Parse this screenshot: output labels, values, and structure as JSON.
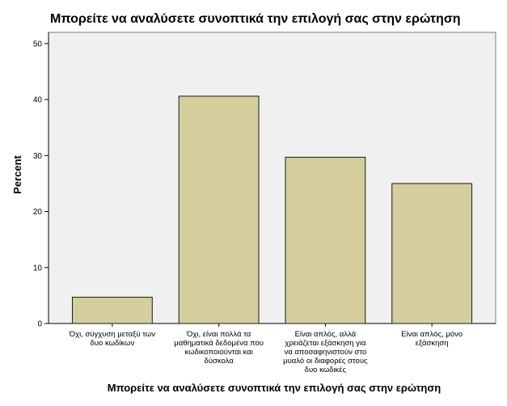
{
  "chart_data": {
    "type": "bar",
    "title": "Μπορείτε να αναλύσετε συνοπτικά την επιλογή σας στην ερώτηση",
    "xlabel": "Μπορείτε να αναλύσετε συνοπτικά την επιλογή σας στην ερώτηση",
    "ylabel": "Percent",
    "ylim": [
      0,
      52
    ],
    "yticks": [
      0,
      10,
      20,
      30,
      40,
      50
    ],
    "grid": false,
    "categories": [
      [
        "Όχι, σύγχυση μεταξύ των",
        "δυο κωδίκων"
      ],
      [
        "Όχι, είναι πολλά τα",
        "μαθηματικά δεδομένα που",
        "κωδικοποιούνται και",
        "δύσκολα"
      ],
      [
        "Είναι απλός, αλλά",
        "χρειάζεται εξάσκηση για",
        "να αποσαφηνιστούν στο",
        "μυαλό οι διαφορές στους",
        "δυο κωδικές"
      ],
      [
        "Είναι απλός, μόνο",
        "εξάσκηση"
      ]
    ],
    "values": [
      4.7,
      40.6,
      29.7,
      25.0
    ],
    "colors": {
      "bar_fill": "#d3ce9b",
      "bar_stroke": "#1a1a1a",
      "plot_bg": "#f0f0f0",
      "axis": "#000000"
    }
  }
}
